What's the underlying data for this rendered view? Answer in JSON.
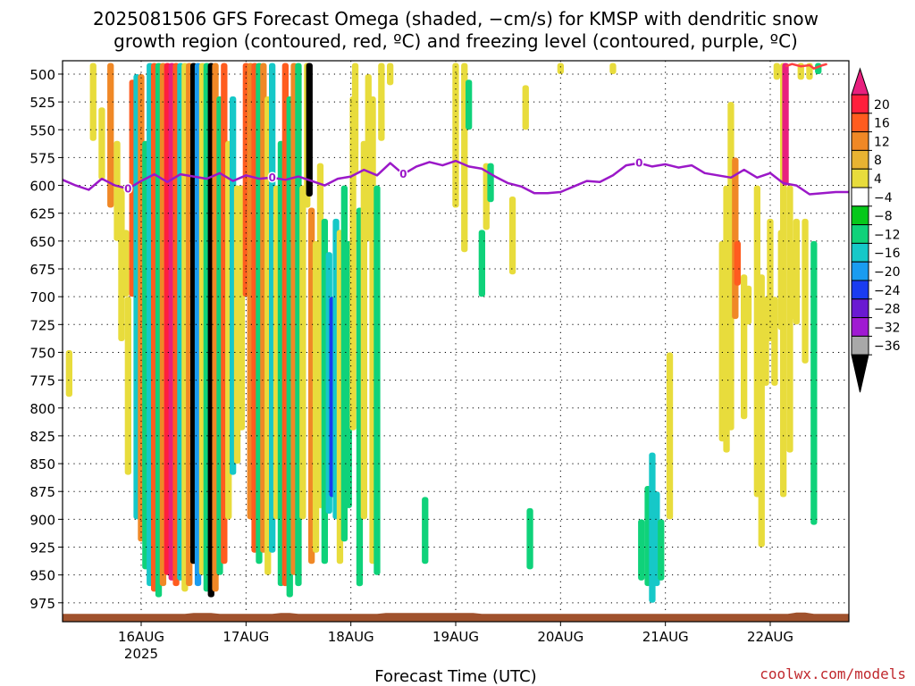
{
  "title_lines": [
    "2025081506 GFS Forecast Omega (shaded, −cm/s) for KMSP with dendritic snow",
    "growth region (contoured, red, ºC) and freezing level (contoured, purple, ºC)"
  ],
  "credit": "coolwx.com/models",
  "chart_data": {
    "type": "heatmap",
    "title": "2025081506 GFS Forecast Omega (shaded, −cm/s) for KMSP with dendritic snow growth region (contoured, red, ºC) and freezing level (contoured, purple, ºC)",
    "xlabel": "Forecast Time (UTC)",
    "ylabel": "",
    "x_ticks": [
      {
        "label": "16AUG",
        "sublabel": "2025",
        "hour": 18
      },
      {
        "label": "17AUG",
        "hour": 42
      },
      {
        "label": "18AUG",
        "hour": 66
      },
      {
        "label": "19AUG",
        "hour": 90
      },
      {
        "label": "20AUG",
        "hour": 114
      },
      {
        "label": "21AUG",
        "hour": 138
      },
      {
        "label": "22AUG",
        "hour": 162
      }
    ],
    "xlim_hours": [
      0,
      180
    ],
    "y_ticks": [
      500,
      525,
      550,
      575,
      600,
      625,
      650,
      675,
      700,
      725,
      750,
      775,
      800,
      825,
      850,
      875,
      900,
      925,
      950,
      975
    ],
    "ylim_hpa": [
      488,
      992
    ],
    "grid": true,
    "surface_hpa": 985,
    "colorbar": {
      "labels": [
        "20",
        "16",
        "12",
        "8",
        "4",
        "−4",
        "−8",
        "−12",
        "−16",
        "−20",
        "−24",
        "−28",
        "−32",
        "−36"
      ],
      "colors": [
        "#ff1f3c",
        "#ff5c1f",
        "#f08826",
        "#e8b332",
        "#e8dc3c",
        "#ffffff",
        "#06c81a",
        "#0fd27a",
        "#16c8c8",
        "#1a9cf0",
        "#1a3cf0",
        "#6a1ad2",
        "#a01ad2",
        "#a8a8a8"
      ],
      "top_color": "#e8207e",
      "bottom_color": "#000000"
    },
    "freezing_level": {
      "label": "0",
      "color": "#9b18c8",
      "hours": [
        0,
        3,
        6,
        9,
        12,
        15,
        18,
        21,
        24,
        27,
        30,
        33,
        36,
        39,
        42,
        45,
        48,
        51,
        54,
        57,
        60,
        63,
        66,
        69,
        72,
        75,
        78,
        81,
        84,
        87,
        90,
        93,
        96,
        99,
        102,
        105,
        108,
        111,
        114,
        117,
        120,
        123,
        126,
        129,
        132,
        135,
        138,
        141,
        144,
        147,
        150,
        153,
        156,
        159,
        162,
        165,
        168,
        171,
        174,
        177,
        180
      ],
      "pressure": [
        595,
        600,
        604,
        594,
        600,
        603,
        596,
        590,
        597,
        590,
        592,
        594,
        589,
        596,
        591,
        594,
        593,
        595,
        592,
        596,
        600,
        594,
        592,
        586,
        591,
        580,
        590,
        583,
        579,
        582,
        578,
        583,
        585,
        592,
        598,
        601,
        607,
        607,
        606,
        601,
        596,
        597,
        591,
        582,
        580,
        583,
        581,
        584,
        582,
        589,
        591,
        593,
        586,
        593,
        589,
        598,
        600,
        608,
        607,
        606,
        606
      ]
    },
    "omega_bands": [
      {
        "hour": 1.5,
        "top": 748,
        "bottom": 790,
        "value": 5
      },
      {
        "hour": 7,
        "top": 490,
        "bottom": 560,
        "value": 6
      },
      {
        "hour": 9,
        "top": 530,
        "bottom": 595,
        "value": 5
      },
      {
        "hour": 11,
        "top": 490,
        "bottom": 620,
        "value": 9
      },
      {
        "hour": 12.5,
        "top": 560,
        "bottom": 650,
        "value": 6
      },
      {
        "hour": 13.5,
        "top": 600,
        "bottom": 740,
        "value": 5
      },
      {
        "hour": 14.5,
        "top": 640,
        "bottom": 700,
        "value": 4
      },
      {
        "hour": 15,
        "top": 700,
        "bottom": 860,
        "value": 6
      },
      {
        "hour": 16,
        "top": 505,
        "bottom": 700,
        "value": 12
      },
      {
        "hour": 17,
        "top": 500,
        "bottom": 900,
        "value": -13
      },
      {
        "hour": 18,
        "top": 500,
        "bottom": 920,
        "value": 9
      },
      {
        "hour": 19,
        "top": 560,
        "bottom": 945,
        "value": -9
      },
      {
        "hour": 20,
        "top": 490,
        "bottom": 960,
        "value": -14
      },
      {
        "hour": 21,
        "top": 490,
        "bottom": 965,
        "value": 14
      },
      {
        "hour": 22,
        "top": 490,
        "bottom": 970,
        "value": -10
      },
      {
        "hour": 23,
        "top": 490,
        "bottom": 960,
        "value": 10
      },
      {
        "hour": 24,
        "top": 490,
        "bottom": 950,
        "value": 18
      },
      {
        "hour": 25,
        "top": 490,
        "bottom": 955,
        "value": 22
      },
      {
        "hour": 26,
        "top": 490,
        "bottom": 960,
        "value": 14
      },
      {
        "hour": 27,
        "top": 490,
        "bottom": 955,
        "value": -12
      },
      {
        "hour": 28,
        "top": 490,
        "bottom": 965,
        "value": 6
      },
      {
        "hour": 29,
        "top": 490,
        "bottom": 960,
        "value": 10
      },
      {
        "hour": 30,
        "top": 490,
        "bottom": 940,
        "value": -38
      },
      {
        "hour": 31,
        "top": 490,
        "bottom": 960,
        "value": -18
      },
      {
        "hour": 32,
        "top": 490,
        "bottom": 950,
        "value": 7
      },
      {
        "hour": 33,
        "top": 490,
        "bottom": 965,
        "value": -10
      },
      {
        "hour": 34,
        "top": 490,
        "bottom": 970,
        "value": -37
      },
      {
        "hour": 35,
        "top": 490,
        "bottom": 965,
        "value": 10
      },
      {
        "hour": 36,
        "top": 520,
        "bottom": 950,
        "value": -9
      },
      {
        "hour": 37,
        "top": 490,
        "bottom": 940,
        "value": 13
      },
      {
        "hour": 38,
        "top": 560,
        "bottom": 900,
        "value": 6
      },
      {
        "hour": 39,
        "top": 520,
        "bottom": 860,
        "value": -12
      },
      {
        "hour": 40,
        "top": 600,
        "bottom": 850,
        "value": 7
      },
      {
        "hour": 41,
        "top": 600,
        "bottom": 820,
        "value": 5
      },
      {
        "hour": 42,
        "top": 490,
        "bottom": 700,
        "value": 12
      },
      {
        "hour": 43,
        "top": 490,
        "bottom": 900,
        "value": 10
      },
      {
        "hour": 44,
        "top": 490,
        "bottom": 930,
        "value": 14
      },
      {
        "hour": 45,
        "top": 490,
        "bottom": 940,
        "value": -10
      },
      {
        "hour": 46,
        "top": 490,
        "bottom": 930,
        "value": 11
      },
      {
        "hour": 47,
        "top": 520,
        "bottom": 950,
        "value": 6
      },
      {
        "hour": 48,
        "top": 490,
        "bottom": 930,
        "value": -12
      },
      {
        "hour": 49,
        "top": 600,
        "bottom": 900,
        "value": 7
      },
      {
        "hour": 50,
        "top": 560,
        "bottom": 960,
        "value": -10
      },
      {
        "hour": 51,
        "top": 490,
        "bottom": 960,
        "value": 12
      },
      {
        "hour": 52,
        "top": 520,
        "bottom": 970,
        "value": -9
      },
      {
        "hour": 53,
        "top": 490,
        "bottom": 950,
        "value": 10
      },
      {
        "hour": 54,
        "top": 490,
        "bottom": 960,
        "value": -11
      },
      {
        "hour": 55,
        "top": 600,
        "bottom": 900,
        "value": 6
      },
      {
        "hour": 56,
        "top": 490,
        "bottom": 620,
        "value": 4
      },
      {
        "hour": 56.5,
        "top": 490,
        "bottom": 610,
        "value": -38
      },
      {
        "hour": 57,
        "top": 620,
        "bottom": 940,
        "value": 11
      },
      {
        "hour": 58,
        "top": 650,
        "bottom": 930,
        "value": 7
      },
      {
        "hour": 59,
        "top": 580,
        "bottom": 890,
        "value": 5
      },
      {
        "hour": 60,
        "top": 630,
        "bottom": 940,
        "value": -10
      },
      {
        "hour": 61,
        "top": 660,
        "bottom": 895,
        "value": -14
      },
      {
        "hour": 61.8,
        "top": 700,
        "bottom": 880,
        "value": -22
      },
      {
        "hour": 62.6,
        "top": 630,
        "bottom": 900,
        "value": -13
      },
      {
        "hour": 63.5,
        "top": 640,
        "bottom": 940,
        "value": 5
      },
      {
        "hour": 64.5,
        "top": 600,
        "bottom": 920,
        "value": -8
      },
      {
        "hour": 65.5,
        "top": 650,
        "bottom": 890,
        "value": -10
      },
      {
        "hour": 66.5,
        "top": 520,
        "bottom": 820,
        "value": 5
      },
      {
        "hour": 67,
        "top": 490,
        "bottom": 590,
        "value": 5
      },
      {
        "hour": 68,
        "top": 620,
        "bottom": 960,
        "value": -9
      },
      {
        "hour": 69,
        "top": 560,
        "bottom": 900,
        "value": 6
      },
      {
        "hour": 70,
        "top": 500,
        "bottom": 650,
        "value": 6
      },
      {
        "hour": 71,
        "top": 520,
        "bottom": 940,
        "value": 5
      },
      {
        "hour": 72,
        "top": 600,
        "bottom": 950,
        "value": -9
      },
      {
        "hour": 73,
        "top": 490,
        "bottom": 560,
        "value": 5
      },
      {
        "hour": 75,
        "top": 490,
        "bottom": 510,
        "value": 4
      },
      {
        "hour": 83,
        "top": 880,
        "bottom": 940,
        "value": -9
      },
      {
        "hour": 90,
        "top": 490,
        "bottom": 620,
        "value": 5
      },
      {
        "hour": 92,
        "top": 490,
        "bottom": 660,
        "value": 4
      },
      {
        "hour": 93,
        "top": 505,
        "bottom": 550,
        "value": -9
      },
      {
        "hour": 96,
        "top": 640,
        "bottom": 700,
        "value": -9
      },
      {
        "hour": 97,
        "top": 580,
        "bottom": 640,
        "value": 5
      },
      {
        "hour": 98,
        "top": 580,
        "bottom": 615,
        "value": -9
      },
      {
        "hour": 103,
        "top": 610,
        "bottom": 680,
        "value": 5
      },
      {
        "hour": 107,
        "top": 890,
        "bottom": 945,
        "value": -9
      },
      {
        "hour": 106,
        "top": 510,
        "bottom": 550,
        "value": 4
      },
      {
        "hour": 114,
        "top": 490,
        "bottom": 500,
        "value": 4
      },
      {
        "hour": 126,
        "top": 490,
        "bottom": 500,
        "value": 5
      },
      {
        "hour": 132.5,
        "top": 900,
        "bottom": 955,
        "value": -9
      },
      {
        "hour": 134,
        "top": 870,
        "bottom": 960,
        "value": -9
      },
      {
        "hour": 135,
        "top": 840,
        "bottom": 975,
        "value": -14
      },
      {
        "hour": 136,
        "top": 875,
        "bottom": 960,
        "value": -13
      },
      {
        "hour": 137,
        "top": 900,
        "bottom": 955,
        "value": -9
      },
      {
        "hour": 139,
        "top": 750,
        "bottom": 900,
        "value": 5
      },
      {
        "hour": 151,
        "top": 650,
        "bottom": 830,
        "value": 5
      },
      {
        "hour": 152,
        "top": 600,
        "bottom": 840,
        "value": 7
      },
      {
        "hour": 153,
        "top": 525,
        "bottom": 820,
        "value": 5
      },
      {
        "hour": 154,
        "top": 575,
        "bottom": 720,
        "value": 9
      },
      {
        "hour": 154.5,
        "top": 650,
        "bottom": 690,
        "value": 13
      },
      {
        "hour": 156,
        "top": 680,
        "bottom": 810,
        "value": 5
      },
      {
        "hour": 157,
        "top": 690,
        "bottom": 725,
        "value": 6
      },
      {
        "hour": 159,
        "top": 600,
        "bottom": 880,
        "value": 6
      },
      {
        "hour": 160,
        "top": 680,
        "bottom": 925,
        "value": 7
      },
      {
        "hour": 161,
        "top": 700,
        "bottom": 780,
        "value": 5
      },
      {
        "hour": 162,
        "top": 630,
        "bottom": 740,
        "value": 5
      },
      {
        "hour": 163,
        "top": 700,
        "bottom": 780,
        "value": 5
      },
      {
        "hour": 163.5,
        "top": 490,
        "bottom": 505,
        "value": 5
      },
      {
        "hour": 164.5,
        "top": 640,
        "bottom": 730,
        "value": 5
      },
      {
        "hour": 165,
        "top": 490,
        "bottom": 880,
        "value": 6
      },
      {
        "hour": 165.5,
        "top": 490,
        "bottom": 600,
        "value": 22
      },
      {
        "hour": 166.5,
        "top": 600,
        "bottom": 840,
        "value": 5
      },
      {
        "hour": 167,
        "top": 650,
        "bottom": 720,
        "value": 6
      },
      {
        "hour": 168,
        "top": 630,
        "bottom": 725,
        "value": 5
      },
      {
        "hour": 169,
        "top": 490,
        "bottom": 505,
        "value": 5
      },
      {
        "hour": 170,
        "top": 630,
        "bottom": 760,
        "value": 5
      },
      {
        "hour": 171,
        "top": 490,
        "bottom": 505,
        "value": 5
      },
      {
        "hour": 172,
        "top": 650,
        "bottom": 905,
        "value": -9
      },
      {
        "hour": 173,
        "top": 490,
        "bottom": 500,
        "value": -9
      }
    ],
    "dgz_contour": {
      "color": "#ff4040",
      "hours": [
        165.5,
        167,
        169,
        171,
        172,
        174,
        175
      ],
      "pressure": [
        493,
        491,
        493,
        492,
        495,
        492,
        491
      ]
    }
  }
}
